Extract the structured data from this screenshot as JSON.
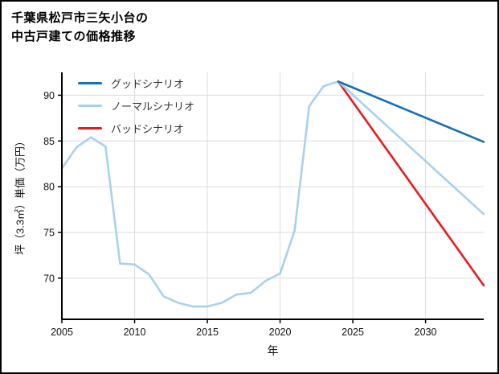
{
  "header": {
    "title_line1": "千葉県松戸市三矢小台の",
    "title_line2": "中古戸建ての価格推移"
  },
  "chart_data": {
    "type": "line",
    "title": "千葉県松戸市三矢小台の中古戸建ての価格推移",
    "xlabel": "年",
    "ylabel": "坪（3.3㎡）単価（万円）",
    "xlim": [
      2005,
      2034
    ],
    "ylim": [
      65.5,
      92.5
    ],
    "xticks": [
      2005,
      2010,
      2015,
      2020,
      2025,
      2030
    ],
    "yticks": [
      70,
      75,
      80,
      85,
      90
    ],
    "grid": true,
    "legend_position": "upper left",
    "series": [
      {
        "id": "good",
        "name": "グッドシナリオ",
        "color": "#186fb4",
        "in_legend": true,
        "x": [
          2024,
          2034
        ],
        "y": [
          91.5,
          84.9
        ]
      },
      {
        "id": "normal",
        "name": "ノーマルシナリオ",
        "color": "#a8d1f0",
        "in_legend": true,
        "x": [
          2024,
          2034
        ],
        "y": [
          91.5,
          77.0
        ]
      },
      {
        "id": "bad",
        "name": "バッドシナリオ",
        "color": "#e8191f",
        "in_legend": true,
        "x": [
          2024,
          2034
        ],
        "y": [
          91.5,
          69.2
        ]
      },
      {
        "id": "history",
        "name": "history",
        "color": "#a8d1f0",
        "in_legend": false,
        "x": [
          2005,
          2006,
          2007,
          2008,
          2009,
          2010,
          2011,
          2012,
          2013,
          2014,
          2015,
          2016,
          2017,
          2018,
          2019,
          2020,
          2021,
          2022,
          2023,
          2024
        ],
        "y": [
          82.0,
          84.3,
          85.4,
          84.4,
          71.6,
          71.5,
          70.4,
          68.0,
          67.3,
          66.9,
          66.9,
          67.3,
          68.2,
          68.4,
          69.7,
          70.5,
          75.2,
          88.8,
          91.0,
          91.5
        ]
      }
    ]
  }
}
